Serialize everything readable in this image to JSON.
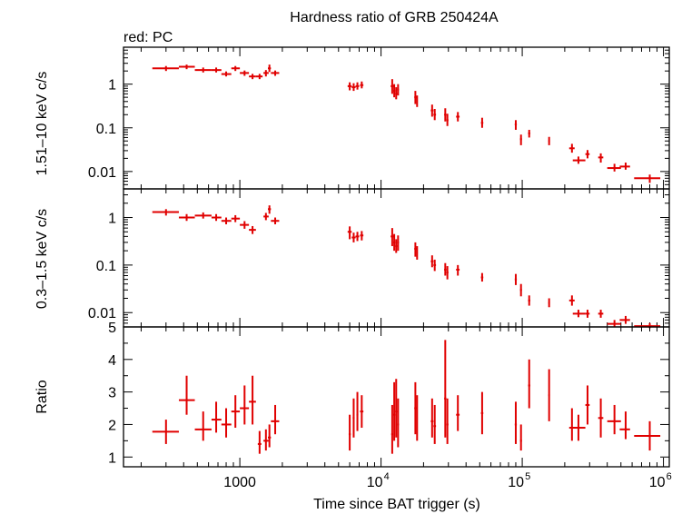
{
  "chart_data": {
    "type": "scatter",
    "title": "Hardness ratio of GRB 250424A",
    "legend": "red: PC",
    "xlabel": "Time since BAT trigger (s)",
    "xscale": "log",
    "xlim": [
      150,
      1100000
    ],
    "x_tick_labels": [
      {
        "value": 1000,
        "label": "1000"
      },
      {
        "value": 10000,
        "base": "10",
        "exp": "4"
      },
      {
        "value": 100000,
        "base": "10",
        "exp": "5"
      },
      {
        "value": 1000000,
        "base": "10",
        "exp": "6"
      }
    ],
    "color": "#e00000",
    "panels": [
      {
        "id": "hard",
        "ylabel": "1.51–10 keV c/s",
        "yscale": "log",
        "ylim": [
          0.004,
          7
        ],
        "y_ticks": [
          {
            "value": 1,
            "label": "1"
          },
          {
            "value": 0.1,
            "label": "0.1"
          },
          {
            "value": 0.01,
            "label": "0.01"
          }
        ],
        "points": [
          [
            300,
            2.3,
            240,
            370,
            2.0,
            2.6
          ],
          [
            420,
            2.5,
            370,
            480,
            2.2,
            2.8
          ],
          [
            550,
            2.1,
            480,
            630,
            1.85,
            2.4
          ],
          [
            680,
            2.1,
            630,
            740,
            1.85,
            2.4
          ],
          [
            800,
            1.7,
            740,
            870,
            1.5,
            1.95
          ],
          [
            930,
            2.3,
            870,
            1000,
            2.0,
            2.6
          ],
          [
            1080,
            1.8,
            1000,
            1160,
            1.55,
            2.05
          ],
          [
            1230,
            1.5,
            1160,
            1300,
            1.3,
            1.72
          ],
          [
            1380,
            1.5,
            1300,
            1450,
            1.3,
            1.72
          ],
          [
            1530,
            1.8,
            1470,
            1600,
            1.5,
            2.1
          ],
          [
            1620,
            2.3,
            1580,
            1660,
            1.9,
            2.8
          ],
          [
            1780,
            1.8,
            1660,
            1900,
            1.55,
            2.05
          ],
          [
            6000,
            0.9,
            5800,
            6200,
            0.72,
            1.1
          ],
          [
            6400,
            0.85,
            6200,
            6600,
            0.7,
            1.05
          ],
          [
            6800,
            0.9,
            6600,
            7000,
            0.75,
            1.1
          ],
          [
            7300,
            0.95,
            7100,
            7500,
            0.8,
            1.15
          ],
          [
            12000,
            0.9,
            11700,
            12300,
            0.6,
            1.3
          ],
          [
            12400,
            0.7,
            12200,
            12600,
            0.5,
            1.0
          ],
          [
            12800,
            0.6,
            12600,
            13000,
            0.45,
            0.85
          ],
          [
            13200,
            0.75,
            13000,
            13400,
            0.55,
            1.0
          ],
          [
            17500,
            0.5,
            17200,
            17800,
            0.35,
            0.7
          ],
          [
            18000,
            0.4,
            17800,
            18200,
            0.3,
            0.55
          ],
          [
            23000,
            0.25,
            22500,
            23500,
            0.18,
            0.34
          ],
          [
            24000,
            0.2,
            23500,
            24500,
            0.15,
            0.27
          ],
          [
            28500,
            0.2,
            28000,
            29000,
            0.14,
            0.28
          ],
          [
            29500,
            0.15,
            29000,
            30000,
            0.11,
            0.21
          ],
          [
            35000,
            0.18,
            34000,
            36000,
            0.14,
            0.23
          ],
          [
            52000,
            0.13,
            51000,
            53000,
            0.1,
            0.17
          ],
          [
            90000,
            0.12,
            88500,
            91500,
            0.09,
            0.15
          ],
          [
            98000,
            0.055,
            96500,
            99500,
            0.04,
            0.07
          ],
          [
            112000,
            0.075,
            110000,
            114000,
            0.06,
            0.09
          ],
          [
            155000,
            0.05,
            153000,
            157000,
            0.04,
            0.062
          ],
          [
            225000,
            0.034,
            215000,
            235000,
            0.027,
            0.043
          ],
          [
            250000,
            0.018,
            228000,
            280000,
            0.015,
            0.022
          ],
          [
            290000,
            0.025,
            280000,
            300000,
            0.02,
            0.031
          ],
          [
            360000,
            0.021,
            345000,
            375000,
            0.016,
            0.026
          ],
          [
            450000,
            0.012,
            400000,
            500000,
            0.01,
            0.015
          ],
          [
            540000,
            0.013,
            490000,
            580000,
            0.011,
            0.016
          ],
          [
            800000,
            0.007,
            620000,
            950000,
            0.0055,
            0.0085
          ]
        ]
      },
      {
        "id": "soft",
        "ylabel": "0.3–1.5 keV c/s",
        "yscale": "log",
        "ylim": [
          0.005,
          4
        ],
        "y_ticks": [
          {
            "value": 1,
            "label": "1"
          },
          {
            "value": 0.1,
            "label": "0.1"
          },
          {
            "value": 0.01,
            "label": "0.01"
          }
        ],
        "points": [
          [
            300,
            1.3,
            240,
            370,
            1.1,
            1.5
          ],
          [
            420,
            1.0,
            370,
            480,
            0.85,
            1.18
          ],
          [
            550,
            1.1,
            480,
            630,
            0.95,
            1.28
          ],
          [
            680,
            1.0,
            630,
            740,
            0.85,
            1.18
          ],
          [
            800,
            0.85,
            740,
            870,
            0.72,
            1.0
          ],
          [
            930,
            0.95,
            870,
            1000,
            0.8,
            1.12
          ],
          [
            1080,
            0.7,
            1000,
            1160,
            0.58,
            0.84
          ],
          [
            1230,
            0.55,
            1160,
            1300,
            0.45,
            0.66
          ],
          [
            1530,
            1.05,
            1470,
            1600,
            0.88,
            1.25
          ],
          [
            1620,
            1.5,
            1580,
            1660,
            1.2,
            1.8
          ],
          [
            1780,
            0.85,
            1660,
            1900,
            0.72,
            1.0
          ],
          [
            6000,
            0.5,
            5800,
            6200,
            0.35,
            0.65
          ],
          [
            6400,
            0.38,
            6200,
            6600,
            0.3,
            0.48
          ],
          [
            6800,
            0.4,
            6600,
            7000,
            0.32,
            0.5
          ],
          [
            7300,
            0.42,
            7100,
            7500,
            0.33,
            0.52
          ],
          [
            12000,
            0.4,
            11700,
            12300,
            0.25,
            0.6
          ],
          [
            12400,
            0.3,
            12200,
            12600,
            0.2,
            0.45
          ],
          [
            12800,
            0.25,
            12600,
            13000,
            0.18,
            0.35
          ],
          [
            13200,
            0.3,
            13000,
            13400,
            0.2,
            0.42
          ],
          [
            17500,
            0.22,
            17200,
            17800,
            0.15,
            0.3
          ],
          [
            18000,
            0.18,
            17800,
            18200,
            0.13,
            0.25
          ],
          [
            23000,
            0.12,
            22500,
            23500,
            0.09,
            0.16
          ],
          [
            24000,
            0.1,
            23500,
            24500,
            0.075,
            0.13
          ],
          [
            28500,
            0.08,
            28000,
            29000,
            0.06,
            0.11
          ],
          [
            29500,
            0.07,
            29000,
            30000,
            0.05,
            0.095
          ],
          [
            35000,
            0.08,
            34000,
            36000,
            0.06,
            0.1
          ],
          [
            52000,
            0.055,
            51000,
            53000,
            0.045,
            0.068
          ],
          [
            90000,
            0.05,
            88500,
            91500,
            0.038,
            0.065
          ],
          [
            98000,
            0.03,
            96500,
            99500,
            0.022,
            0.04
          ],
          [
            112000,
            0.018,
            110000,
            114000,
            0.014,
            0.023
          ],
          [
            155000,
            0.016,
            153000,
            157000,
            0.013,
            0.02
          ],
          [
            225000,
            0.018,
            215000,
            235000,
            0.014,
            0.023
          ],
          [
            250000,
            0.0095,
            228000,
            280000,
            0.008,
            0.0115
          ],
          [
            290000,
            0.0095,
            280000,
            300000,
            0.0078,
            0.0115
          ],
          [
            360000,
            0.0095,
            345000,
            375000,
            0.0078,
            0.0115
          ],
          [
            450000,
            0.0058,
            400000,
            500000,
            0.005,
            0.007
          ],
          [
            540000,
            0.007,
            490000,
            580000,
            0.0058,
            0.0085
          ],
          [
            800000,
            0.0052,
            620000,
            950000,
            0.0047,
            0.006
          ]
        ]
      },
      {
        "id": "ratio",
        "ylabel": "Ratio",
        "yscale": "linear",
        "ylim": [
          0.7,
          5
        ],
        "y_ticks": [
          {
            "value": 1,
            "label": "1"
          },
          {
            "value": 2,
            "label": "2"
          },
          {
            "value": 3,
            "label": "3"
          },
          {
            "value": 4,
            "label": "4"
          },
          {
            "value": 5,
            "label": "5"
          }
        ],
        "points": [
          [
            300,
            1.78,
            240,
            370,
            1.4,
            2.15
          ],
          [
            420,
            2.75,
            370,
            480,
            2.3,
            3.5
          ],
          [
            550,
            1.85,
            480,
            630,
            1.5,
            2.4
          ],
          [
            680,
            2.15,
            630,
            740,
            1.75,
            2.7
          ],
          [
            800,
            2.0,
            740,
            870,
            1.6,
            2.5
          ],
          [
            930,
            2.4,
            870,
            1000,
            1.9,
            2.9
          ],
          [
            1080,
            2.5,
            1000,
            1160,
            2.0,
            3.2
          ],
          [
            1230,
            2.7,
            1160,
            1300,
            2.0,
            3.5
          ],
          [
            1380,
            1.4,
            1340,
            1420,
            1.1,
            1.8
          ],
          [
            1530,
            1.5,
            1470,
            1600,
            1.2,
            1.85
          ],
          [
            1620,
            1.6,
            1580,
            1660,
            1.3,
            2.0
          ],
          [
            1780,
            2.1,
            1660,
            1900,
            1.7,
            2.6
          ],
          [
            6000,
            1.7,
            5900,
            6100,
            1.2,
            2.3
          ],
          [
            6400,
            2.2,
            6300,
            6500,
            1.6,
            2.8
          ],
          [
            6800,
            2.3,
            6700,
            6900,
            1.8,
            3.0
          ],
          [
            7300,
            2.4,
            7100,
            7500,
            1.9,
            2.9
          ],
          [
            12000,
            1.7,
            11800,
            12200,
            1.1,
            2.6
          ],
          [
            12400,
            2.3,
            12200,
            12600,
            1.5,
            3.3
          ],
          [
            12800,
            2.4,
            12600,
            13000,
            1.6,
            3.4
          ],
          [
            13200,
            2.0,
            13000,
            13400,
            1.3,
            2.8
          ],
          [
            17500,
            2.5,
            17200,
            17800,
            1.7,
            3.3
          ],
          [
            18000,
            2.2,
            17800,
            18200,
            1.5,
            2.9
          ],
          [
            23000,
            2.1,
            22500,
            23500,
            1.6,
            2.8
          ],
          [
            24000,
            1.95,
            23500,
            24500,
            1.4,
            2.6
          ],
          [
            28500,
            2.8,
            28000,
            29000,
            1.6,
            4.6
          ],
          [
            29500,
            2.0,
            29000,
            30000,
            1.4,
            2.8
          ],
          [
            35000,
            2.3,
            34000,
            36000,
            1.8,
            2.9
          ],
          [
            52000,
            2.35,
            51000,
            53000,
            1.7,
            3.0
          ],
          [
            90000,
            2.0,
            88500,
            91500,
            1.4,
            2.7
          ],
          [
            98000,
            1.5,
            96500,
            99500,
            1.2,
            2.0
          ],
          [
            112000,
            3.2,
            110000,
            114000,
            2.5,
            4.0
          ],
          [
            155000,
            2.9,
            153000,
            157000,
            2.1,
            3.7
          ],
          [
            225000,
            1.9,
            215000,
            235000,
            1.5,
            2.5
          ],
          [
            250000,
            1.9,
            228000,
            280000,
            1.5,
            2.3
          ],
          [
            290000,
            2.6,
            280000,
            300000,
            2.0,
            3.2
          ],
          [
            360000,
            2.2,
            345000,
            375000,
            1.6,
            2.8
          ],
          [
            450000,
            2.1,
            400000,
            500000,
            1.7,
            2.6
          ],
          [
            540000,
            1.85,
            490000,
            580000,
            1.55,
            2.4
          ],
          [
            800000,
            1.65,
            620000,
            950000,
            1.2,
            2.1
          ]
        ]
      }
    ]
  }
}
